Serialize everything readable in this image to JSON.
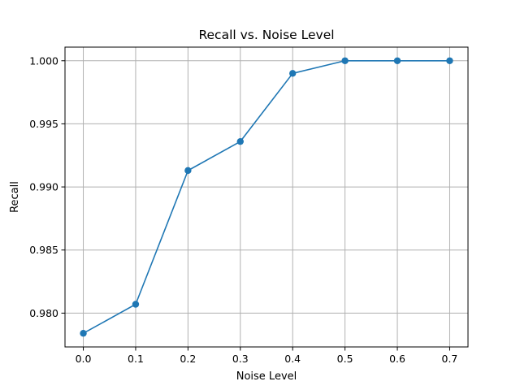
{
  "chart_data": {
    "type": "line",
    "title": "Recall vs. Noise Level",
    "xlabel": "Noise Level",
    "ylabel": "Recall",
    "x": [
      0.0,
      0.1,
      0.2,
      0.3,
      0.4,
      0.5,
      0.6,
      0.7
    ],
    "series": [
      {
        "name": "Recall",
        "values": [
          0.9784,
          0.9807,
          0.9913,
          0.9936,
          0.999,
          1.0,
          1.0,
          1.0
        ],
        "color": "#1f77b4",
        "marker": "circle"
      }
    ],
    "xlim": [
      -0.035,
      0.735
    ],
    "ylim": [
      0.97732,
      1.00108
    ],
    "xticks": [
      0.0,
      0.1,
      0.2,
      0.3,
      0.4,
      0.5,
      0.6,
      0.7
    ],
    "xtick_labels": [
      "0.0",
      "0.1",
      "0.2",
      "0.3",
      "0.4",
      "0.5",
      "0.6",
      "0.7"
    ],
    "yticks": [
      0.98,
      0.985,
      0.99,
      0.995,
      1.0
    ],
    "ytick_labels": [
      "0.980",
      "0.985",
      "0.990",
      "0.995",
      "1.000"
    ],
    "grid": true,
    "legend": false
  }
}
